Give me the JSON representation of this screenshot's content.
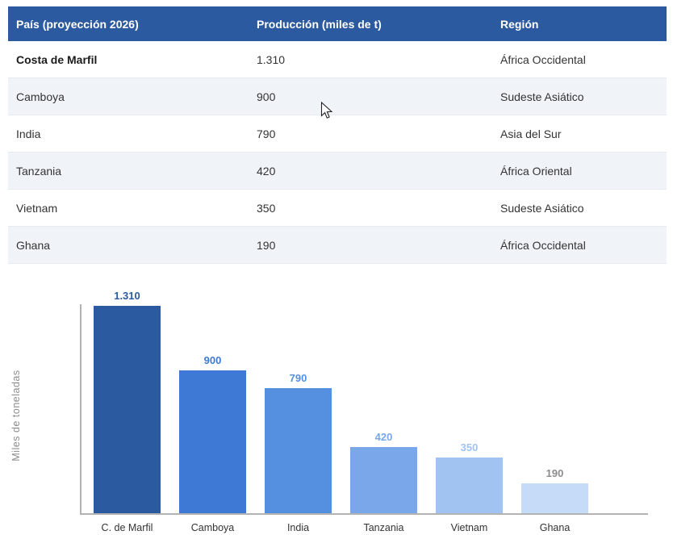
{
  "table": {
    "header_bg": "#2c5aa0",
    "headers": [
      "País (proyección 2026)",
      "Producción (miles de t)",
      "Región"
    ],
    "rows": [
      {
        "country": "Costa de Marfil",
        "production": "1.310",
        "region": "África Occidental",
        "highlight": true
      },
      {
        "country": "Camboya",
        "production": "900",
        "region": "Sudeste Asiático",
        "highlight": false
      },
      {
        "country": "India",
        "production": "790",
        "region": "Asia del Sur",
        "highlight": false
      },
      {
        "country": "Tanzania",
        "production": "420",
        "region": "África Oriental",
        "highlight": false
      },
      {
        "country": "Vietnam",
        "production": "350",
        "region": "Sudeste Asiático",
        "highlight": false
      },
      {
        "country": "Ghana",
        "production": "190",
        "region": "África Occidental",
        "highlight": false
      }
    ]
  },
  "chart_data": {
    "type": "bar",
    "title": "",
    "xlabel": "",
    "ylabel": "Miles de toneladas",
    "categories": [
      "C. de Marfil",
      "Camboya",
      "India",
      "Tanzania",
      "Vietnam",
      "Ghana"
    ],
    "values": [
      1310,
      900,
      790,
      420,
      350,
      190
    ],
    "value_labels": [
      "1.310",
      "900",
      "790",
      "420",
      "350",
      "190"
    ],
    "bar_colors": [
      "#2c5aa0",
      "#3e7ad5",
      "#5590e0",
      "#7aa6ea",
      "#a0c3f2",
      "#c6dbf8"
    ],
    "value_label_colors": [
      "#2c5aa0",
      "#3e7ad5",
      "#5590e0",
      "#7aa6ea",
      "#a0c3f2",
      "#8c8c8c"
    ],
    "ylim": [
      0,
      1310
    ],
    "grid": false,
    "legend": false,
    "axis_color": "#b3b3b3"
  }
}
